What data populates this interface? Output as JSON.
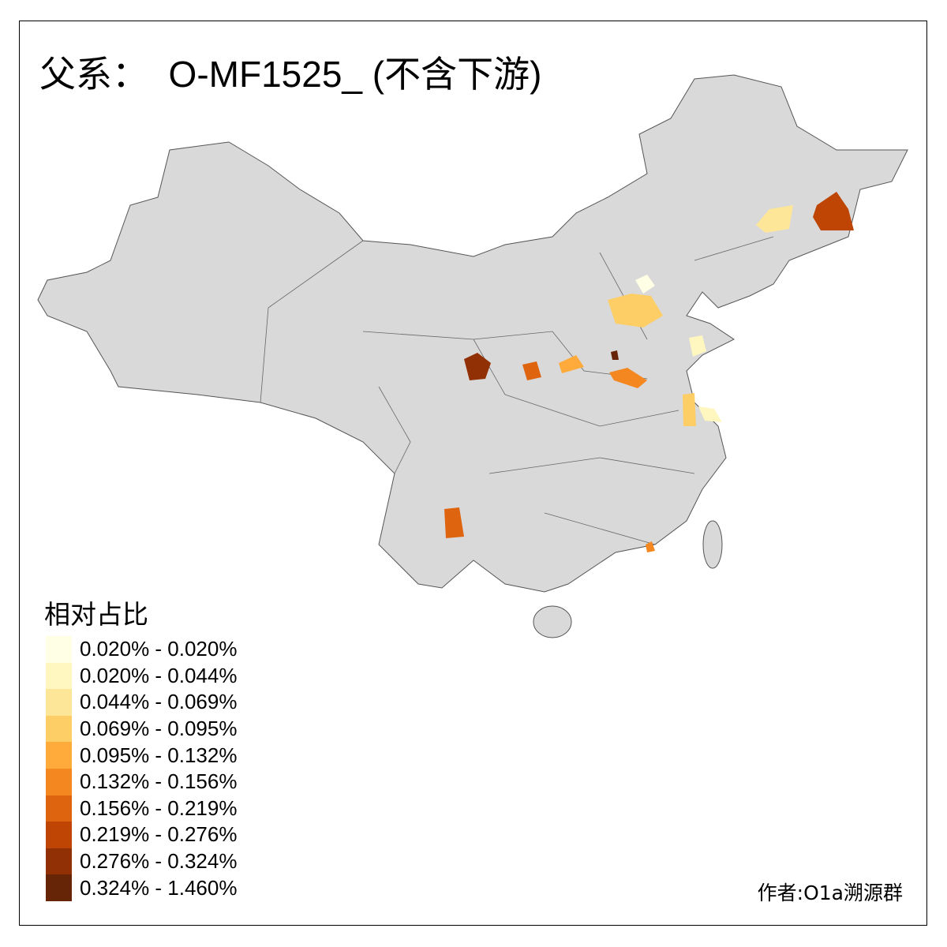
{
  "title": "父系：  O-MF1525_ (不含下游)",
  "legend": {
    "title": "相对占比",
    "items": [
      {
        "label": "0.020% - 0.020%",
        "color": "#FFFFE5"
      },
      {
        "label": "0.020% - 0.044%",
        "color": "#FFF7BF"
      },
      {
        "label": "0.044% - 0.069%",
        "color": "#FEE699"
      },
      {
        "label": "0.069% - 0.095%",
        "color": "#FECE66"
      },
      {
        "label": "0.095% - 0.132%",
        "color": "#FEAB3B"
      },
      {
        "label": "0.132% - 0.156%",
        "color": "#F4871F"
      },
      {
        "label": "0.156% - 0.219%",
        "color": "#DF6410"
      },
      {
        "label": "0.219% - 0.276%",
        "color": "#BE4503"
      },
      {
        "label": "0.276% - 0.324%",
        "color": "#912F05"
      },
      {
        "label": "0.324% - 1.460%",
        "color": "#662506"
      }
    ]
  },
  "credit": "作者:O1a溯源群",
  "map": {
    "base_color": "#D9D9D9",
    "border_color": "#555555"
  }
}
